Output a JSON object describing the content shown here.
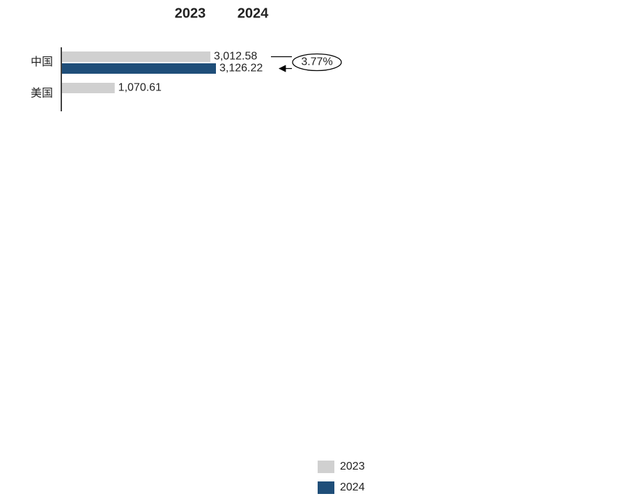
{
  "chart_data": {
    "type": "hbar",
    "categories": [
      "中国",
      "美国"
    ],
    "series": [
      {
        "name": "2023",
        "color": "#d0d0d0",
        "values": [
          3012.58,
          1070.61
        ],
        "value_labels": [
          "3,012.58",
          "1,070.61"
        ]
      },
      {
        "name": "2024",
        "color": "#1f4e79",
        "values": [
          3126.22,
          null
        ],
        "value_labels": [
          "3,126.22",
          null
        ]
      }
    ],
    "changes": [
      3.77,
      null
    ],
    "change_labels": [
      "3.77%",
      null
    ]
  }
}
